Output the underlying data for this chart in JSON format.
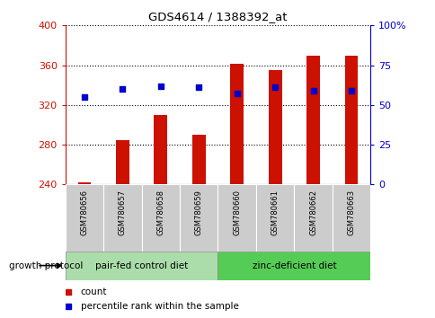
{
  "title": "GDS4614 / 1388392_at",
  "samples": [
    "GSM780656",
    "GSM780657",
    "GSM780658",
    "GSM780659",
    "GSM780660",
    "GSM780661",
    "GSM780662",
    "GSM780663"
  ],
  "counts": [
    242,
    285,
    310,
    290,
    361,
    355,
    370,
    370
  ],
  "percentiles": [
    55,
    60,
    62,
    61,
    57,
    61,
    59,
    59
  ],
  "ylim_left": [
    240,
    400
  ],
  "ylim_right": [
    0,
    100
  ],
  "yticks_left": [
    240,
    280,
    320,
    360,
    400
  ],
  "yticks_right": [
    0,
    25,
    50,
    75,
    100
  ],
  "ytick_labels_right": [
    "0",
    "25",
    "50",
    "75",
    "100%"
  ],
  "bar_color": "#cc1100",
  "dot_color": "#0000cc",
  "group1_label": "pair-fed control diet",
  "group2_label": "zinc-deficient diet",
  "group1_color": "#aaddaa",
  "group2_color": "#55cc55",
  "group_protocol_label": "growth protocol",
  "legend_count_label": "count",
  "legend_pct_label": "percentile rank within the sample",
  "title_color": "#000000",
  "left_axis_color": "#cc1100",
  "right_axis_color": "#0000cc",
  "background_color": "#ffffff",
  "plot_bg_color": "#ffffff",
  "grid_color": "#000000",
  "tick_bg_color": "#cccccc"
}
